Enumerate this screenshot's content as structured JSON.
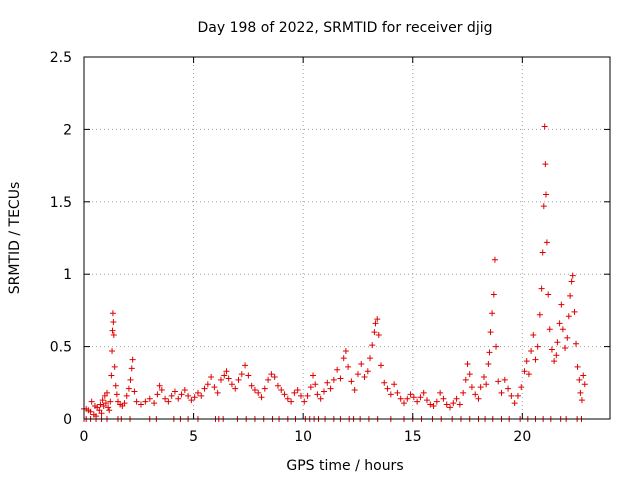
{
  "chart_data": {
    "type": "scatter",
    "title": "Day 198 of 2022, SRMTID for receiver djig",
    "xlabel": "GPS time / hours",
    "ylabel": "SRMTID / TECUs",
    "xlim": [
      0,
      24
    ],
    "ylim": [
      0,
      2.5
    ],
    "x_ticks": [
      0,
      5,
      10,
      15,
      20
    ],
    "x_tick_labels": [
      "0",
      "5",
      "10",
      "15",
      "20"
    ],
    "y_ticks": [
      0,
      0.5,
      1,
      1.5,
      2,
      2.5
    ],
    "y_tick_labels": [
      "0",
      "0.5",
      "1",
      "1.5",
      "2",
      "2.5"
    ],
    "grid": true,
    "marker": "+",
    "color": "#e00000",
    "series": [
      {
        "name": "djig",
        "points": [
          [
            0.0,
            0.07
          ],
          [
            0.1,
            0.07
          ],
          [
            0.2,
            0.06
          ],
          [
            0.3,
            0.05
          ],
          [
            0.35,
            0.12
          ],
          [
            0.45,
            0.03
          ],
          [
            0.5,
            0.09
          ],
          [
            0.55,
            0.02
          ],
          [
            0.6,
            0.08
          ],
          [
            0.7,
            0.06
          ],
          [
            0.75,
            0.1
          ],
          [
            0.8,
            0.04
          ],
          [
            0.85,
            0.13
          ],
          [
            0.9,
            0.09
          ],
          [
            0.95,
            0.16
          ],
          [
            1.0,
            0.11
          ],
          [
            1.05,
            0.18
          ],
          [
            1.1,
            0.08
          ],
          [
            1.15,
            0.06
          ],
          [
            1.2,
            0.12
          ],
          [
            1.25,
            0.3
          ],
          [
            1.28,
            0.47
          ],
          [
            1.3,
            0.61
          ],
          [
            1.32,
            0.73
          ],
          [
            1.34,
            0.67
          ],
          [
            1.36,
            0.58
          ],
          [
            1.4,
            0.36
          ],
          [
            1.45,
            0.23
          ],
          [
            1.5,
            0.17
          ],
          [
            1.55,
            0.12
          ],
          [
            1.65,
            0.1
          ],
          [
            1.75,
            0.09
          ],
          [
            1.85,
            0.11
          ],
          [
            1.95,
            0.16
          ],
          [
            2.05,
            0.21
          ],
          [
            2.12,
            0.27
          ],
          [
            2.18,
            0.35
          ],
          [
            2.22,
            0.41
          ],
          [
            2.3,
            0.19
          ],
          [
            2.4,
            0.12
          ],
          [
            2.6,
            0.1
          ],
          [
            2.8,
            0.12
          ],
          [
            3.0,
            0.14
          ],
          [
            3.2,
            0.11
          ],
          [
            3.35,
            0.17
          ],
          [
            3.45,
            0.23
          ],
          [
            3.55,
            0.2
          ],
          [
            3.7,
            0.14
          ],
          [
            3.85,
            0.12
          ],
          [
            4.0,
            0.16
          ],
          [
            4.15,
            0.19
          ],
          [
            4.3,
            0.14
          ],
          [
            4.45,
            0.17
          ],
          [
            4.6,
            0.2
          ],
          [
            4.75,
            0.16
          ],
          [
            4.9,
            0.13
          ],
          [
            5.05,
            0.15
          ],
          [
            5.2,
            0.18
          ],
          [
            5.35,
            0.16
          ],
          [
            5.5,
            0.21
          ],
          [
            5.65,
            0.24
          ],
          [
            5.8,
            0.29
          ],
          [
            5.95,
            0.22
          ],
          [
            6.1,
            0.18
          ],
          [
            6.25,
            0.27
          ],
          [
            6.4,
            0.3
          ],
          [
            6.5,
            0.33
          ],
          [
            6.6,
            0.28
          ],
          [
            6.75,
            0.24
          ],
          [
            6.9,
            0.21
          ],
          [
            7.05,
            0.27
          ],
          [
            7.2,
            0.31
          ],
          [
            7.35,
            0.37
          ],
          [
            7.5,
            0.3
          ],
          [
            7.65,
            0.23
          ],
          [
            7.8,
            0.2
          ],
          [
            7.95,
            0.18
          ],
          [
            8.1,
            0.15
          ],
          [
            8.25,
            0.21
          ],
          [
            8.4,
            0.27
          ],
          [
            8.55,
            0.31
          ],
          [
            8.7,
            0.29
          ],
          [
            8.85,
            0.23
          ],
          [
            9.0,
            0.2
          ],
          [
            9.15,
            0.17
          ],
          [
            9.3,
            0.14
          ],
          [
            9.45,
            0.12
          ],
          [
            9.6,
            0.18
          ],
          [
            9.75,
            0.2
          ],
          [
            9.9,
            0.16
          ],
          [
            10.05,
            0.12
          ],
          [
            10.2,
            0.16
          ],
          [
            10.35,
            0.22
          ],
          [
            10.45,
            0.3
          ],
          [
            10.55,
            0.24
          ],
          [
            10.65,
            0.17
          ],
          [
            10.8,
            0.14
          ],
          [
            10.95,
            0.19
          ],
          [
            11.1,
            0.25
          ],
          [
            11.25,
            0.21
          ],
          [
            11.4,
            0.27
          ],
          [
            11.55,
            0.34
          ],
          [
            11.7,
            0.28
          ],
          [
            11.85,
            0.42
          ],
          [
            11.95,
            0.47
          ],
          [
            12.05,
            0.36
          ],
          [
            12.2,
            0.26
          ],
          [
            12.35,
            0.2
          ],
          [
            12.5,
            0.31
          ],
          [
            12.65,
            0.38
          ],
          [
            12.8,
            0.29
          ],
          [
            12.95,
            0.33
          ],
          [
            13.05,
            0.42
          ],
          [
            13.15,
            0.51
          ],
          [
            13.25,
            0.6
          ],
          [
            13.3,
            0.66
          ],
          [
            13.38,
            0.69
          ],
          [
            13.45,
            0.58
          ],
          [
            13.55,
            0.37
          ],
          [
            13.7,
            0.25
          ],
          [
            13.85,
            0.21
          ],
          [
            14.0,
            0.17
          ],
          [
            14.15,
            0.24
          ],
          [
            14.3,
            0.18
          ],
          [
            14.45,
            0.14
          ],
          [
            14.6,
            0.11
          ],
          [
            14.75,
            0.14
          ],
          [
            14.9,
            0.17
          ],
          [
            15.05,
            0.15
          ],
          [
            15.2,
            0.12
          ],
          [
            15.35,
            0.15
          ],
          [
            15.5,
            0.18
          ],
          [
            15.65,
            0.13
          ],
          [
            15.8,
            0.1
          ],
          [
            15.95,
            0.09
          ],
          [
            16.1,
            0.12
          ],
          [
            16.25,
            0.18
          ],
          [
            16.4,
            0.14
          ],
          [
            16.55,
            0.1
          ],
          [
            16.7,
            0.08
          ],
          [
            16.85,
            0.11
          ],
          [
            17.0,
            0.14
          ],
          [
            17.15,
            0.1
          ],
          [
            17.3,
            0.18
          ],
          [
            17.42,
            0.27
          ],
          [
            17.5,
            0.38
          ],
          [
            17.6,
            0.31
          ],
          [
            17.7,
            0.22
          ],
          [
            17.85,
            0.17
          ],
          [
            18.0,
            0.14
          ],
          [
            18.1,
            0.22
          ],
          [
            18.25,
            0.29
          ],
          [
            18.35,
            0.24
          ],
          [
            18.45,
            0.38
          ],
          [
            18.5,
            0.46
          ],
          [
            18.55,
            0.6
          ],
          [
            18.62,
            0.73
          ],
          [
            18.7,
            0.86
          ],
          [
            18.75,
            1.1
          ],
          [
            18.8,
            0.5
          ],
          [
            18.9,
            0.26
          ],
          [
            19.05,
            0.18
          ],
          [
            19.2,
            0.27
          ],
          [
            19.35,
            0.21
          ],
          [
            19.5,
            0.16
          ],
          [
            19.65,
            0.11
          ],
          [
            19.8,
            0.16
          ],
          [
            19.95,
            0.22
          ],
          [
            20.1,
            0.33
          ],
          [
            20.2,
            0.4
          ],
          [
            20.3,
            0.31
          ],
          [
            20.4,
            0.47
          ],
          [
            20.5,
            0.58
          ],
          [
            20.6,
            0.41
          ],
          [
            20.7,
            0.5
          ],
          [
            20.8,
            0.72
          ],
          [
            20.88,
            0.9
          ],
          [
            20.93,
            1.15
          ],
          [
            20.98,
            1.47
          ],
          [
            21.02,
            2.02
          ],
          [
            21.05,
            1.76
          ],
          [
            21.08,
            1.55
          ],
          [
            21.12,
            1.22
          ],
          [
            21.18,
            0.86
          ],
          [
            21.25,
            0.62
          ],
          [
            21.35,
            0.48
          ],
          [
            21.45,
            0.4
          ],
          [
            21.55,
            0.44
          ],
          [
            21.6,
            0.53
          ],
          [
            21.7,
            0.66
          ],
          [
            21.78,
            0.79
          ],
          [
            21.85,
            0.62
          ],
          [
            21.95,
            0.49
          ],
          [
            22.05,
            0.56
          ],
          [
            22.12,
            0.71
          ],
          [
            22.18,
            0.85
          ],
          [
            22.25,
            0.95
          ],
          [
            22.3,
            0.99
          ],
          [
            22.38,
            0.74
          ],
          [
            22.45,
            0.52
          ],
          [
            22.52,
            0.36
          ],
          [
            22.6,
            0.27
          ],
          [
            22.65,
            0.18
          ],
          [
            22.72,
            0.13
          ],
          [
            22.78,
            0.3
          ],
          [
            22.85,
            0.24
          ]
        ]
      }
    ],
    "baseline_markers": [
      0.0,
      0.1,
      0.3,
      0.55,
      0.8,
      1.05,
      1.55,
      1.7,
      2.1,
      3.0,
      3.3,
      4.1,
      4.4,
      4.75,
      5.2,
      6.0,
      6.15,
      6.35,
      7.0,
      7.4,
      7.8,
      8.2,
      8.6,
      8.9,
      9.3,
      9.65,
      10.1,
      10.3,
      10.5,
      10.7,
      11.0,
      11.4,
      11.7,
      12.1,
      12.3,
      12.6,
      13.0,
      13.4,
      14.0,
      14.6,
      15.0,
      15.4,
      15.9,
      16.3,
      16.8,
      17.2,
      17.6,
      18.0,
      18.3,
      18.65,
      19.05,
      19.4,
      19.9,
      20.25,
      20.6,
      20.95,
      21.3,
      21.75,
      22.0,
      22.5,
      22.7
    ]
  }
}
